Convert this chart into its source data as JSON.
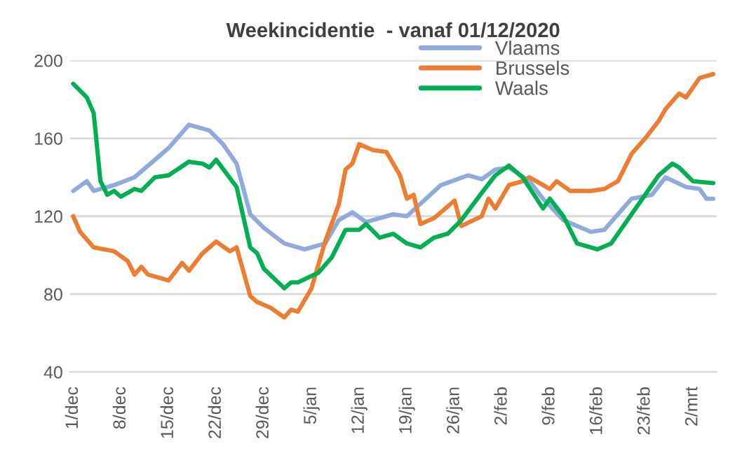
{
  "chart_data": {
    "type": "line",
    "title": "Weekincidentie  - vanaf 01/12/2020",
    "xlim": [
      "2020-11-30T12:00",
      "2021-03-05T12:00"
    ],
    "xticks": [
      {
        "value": "2020-12-01",
        "label": "1/dec"
      },
      {
        "value": "2020-12-08",
        "label": "8/dec"
      },
      {
        "value": "2020-12-15",
        "label": "15/dec"
      },
      {
        "value": "2020-12-22",
        "label": "22/dec"
      },
      {
        "value": "2020-12-29",
        "label": "29/dec"
      },
      {
        "value": "2021-01-05",
        "label": "5/jan"
      },
      {
        "value": "2021-01-12",
        "label": "12/jan"
      },
      {
        "value": "2021-01-19",
        "label": "19/jan"
      },
      {
        "value": "2021-01-26",
        "label": "26/jan"
      },
      {
        "value": "2021-02-02",
        "label": "2/feb"
      },
      {
        "value": "2021-02-09",
        "label": "9/feb"
      },
      {
        "value": "2021-02-16",
        "label": "16/feb"
      },
      {
        "value": "2021-02-23",
        "label": "23/feb"
      },
      {
        "value": "2021-03-02",
        "label": "2/mrt"
      }
    ],
    "ylim": [
      40,
      200
    ],
    "yticks": [
      40,
      80,
      120,
      160,
      200
    ],
    "grid": "y",
    "legend": "top right",
    "line_style": "solid",
    "marker": "none",
    "series": [
      {
        "name": "Vlaams",
        "color": "#8faadc",
        "x": [
          "2020-12-01",
          "2020-12-03",
          "2020-12-04",
          "2020-12-07",
          "2020-12-10",
          "2020-12-13",
          "2020-12-15",
          "2020-12-18",
          "2020-12-21",
          "2020-12-23",
          "2020-12-25",
          "2020-12-27",
          "2020-12-29",
          "2021-01-01",
          "2021-01-04",
          "2021-01-07",
          "2021-01-09",
          "2021-01-11",
          "2021-01-13",
          "2021-01-17",
          "2021-01-19",
          "2021-01-24",
          "2021-01-28",
          "2021-01-30",
          "2021-02-01",
          "2021-02-03",
          "2021-02-06",
          "2021-02-08",
          "2021-02-11",
          "2021-02-15",
          "2021-02-17",
          "2021-02-21",
          "2021-02-24",
          "2021-02-26",
          "2021-03-01",
          "2021-03-03",
          "2021-03-04",
          "2021-03-05"
        ],
        "values": [
          133,
          138,
          133,
          136,
          140,
          149,
          155,
          167,
          164,
          157,
          147,
          121,
          114,
          106,
          103,
          106,
          118,
          122,
          117,
          121,
          120,
          136,
          141,
          139,
          144,
          145,
          138,
          129,
          118,
          112,
          113,
          129,
          131,
          140,
          135,
          134,
          129,
          129
        ]
      },
      {
        "name": "Brussels",
        "color": "#ed7d31",
        "x": [
          "2020-12-01",
          "2020-12-02",
          "2020-12-04",
          "2020-12-07",
          "2020-12-09",
          "2020-12-10",
          "2020-12-11",
          "2020-12-12",
          "2020-12-15",
          "2020-12-17",
          "2020-12-18",
          "2020-12-20",
          "2020-12-22",
          "2020-12-24",
          "2020-12-25",
          "2020-12-27",
          "2020-12-28",
          "2020-12-30",
          "2021-01-01",
          "2021-01-02",
          "2021-01-03",
          "2021-01-05",
          "2021-01-07",
          "2021-01-09",
          "2021-01-10",
          "2021-01-11",
          "2021-01-12",
          "2021-01-14",
          "2021-01-16",
          "2021-01-18",
          "2021-01-19",
          "2021-01-20",
          "2021-01-21",
          "2021-01-23",
          "2021-01-26",
          "2021-01-27",
          "2021-01-30",
          "2021-01-31",
          "2021-02-01",
          "2021-02-03",
          "2021-02-05",
          "2021-02-06",
          "2021-02-08",
          "2021-02-09",
          "2021-02-10",
          "2021-02-12",
          "2021-02-15",
          "2021-02-17",
          "2021-02-19",
          "2021-02-21",
          "2021-02-23",
          "2021-02-25",
          "2021-02-26",
          "2021-02-28",
          "2021-03-01",
          "2021-03-03",
          "2021-03-05"
        ],
        "values": [
          120,
          112,
          104,
          102,
          97,
          90,
          94,
          90,
          87,
          96,
          92,
          101,
          107,
          102,
          104,
          79,
          76,
          73,
          68,
          72,
          71,
          83,
          107,
          126,
          144,
          147,
          157,
          154,
          153,
          141,
          129,
          131,
          116,
          119,
          128,
          115,
          120,
          129,
          124,
          136,
          138,
          140,
          136,
          134,
          138,
          133,
          133,
          134,
          138,
          152,
          160,
          169,
          175,
          183,
          181,
          191,
          193
        ]
      },
      {
        "name": "Waals",
        "color": "#00b050",
        "x": [
          "2020-12-01",
          "2020-12-03",
          "2020-12-04",
          "2020-12-05",
          "2020-12-06",
          "2020-12-07",
          "2020-12-08",
          "2020-12-10",
          "2020-12-11",
          "2020-12-13",
          "2020-12-15",
          "2020-12-18",
          "2020-12-20",
          "2020-12-21",
          "2020-12-22",
          "2020-12-25",
          "2020-12-27",
          "2020-12-28",
          "2020-12-29",
          "2021-01-01",
          "2021-01-02",
          "2021-01-03",
          "2021-01-06",
          "2021-01-08",
          "2021-01-10",
          "2021-01-12",
          "2021-01-13",
          "2021-01-15",
          "2021-01-17",
          "2021-01-19",
          "2021-01-21",
          "2021-01-23",
          "2021-01-25",
          "2021-01-27",
          "2021-01-30",
          "2021-02-01",
          "2021-02-03",
          "2021-02-05",
          "2021-02-08",
          "2021-02-09",
          "2021-02-11",
          "2021-02-13",
          "2021-02-16",
          "2021-02-18",
          "2021-02-21",
          "2021-02-25",
          "2021-02-27",
          "2021-02-28",
          "2021-03-02",
          "2021-03-05"
        ],
        "values": [
          188,
          181,
          173,
          138,
          131,
          133,
          130,
          134,
          133,
          140,
          141,
          148,
          147,
          145,
          149,
          135,
          104,
          101,
          93,
          83,
          86,
          86,
          91,
          99,
          113,
          113,
          116,
          109,
          111,
          106,
          104,
          109,
          111,
          118,
          132,
          141,
          146,
          140,
          124,
          129,
          120,
          106,
          103,
          106,
          121,
          141,
          147,
          145,
          138,
          137
        ]
      }
    ]
  }
}
